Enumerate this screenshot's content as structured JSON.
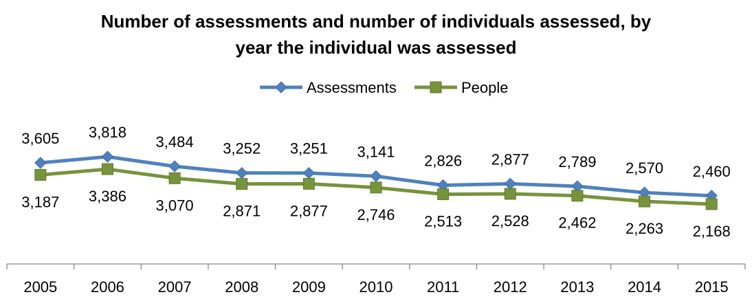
{
  "chart_data": {
    "type": "line",
    "title": [
      "Number of assessments and number of individuals assessed, by",
      "year the individual was assessed"
    ],
    "categories": [
      "2005",
      "2006",
      "2007",
      "2008",
      "2009",
      "2010",
      "2011",
      "2012",
      "2013",
      "2014",
      "2015"
    ],
    "series": [
      {
        "name": "Assessments",
        "color": "#4F81BD",
        "marker": "diamond",
        "values": [
          3605,
          3818,
          3484,
          3252,
          3251,
          3141,
          2826,
          2877,
          2789,
          2570,
          2460
        ],
        "labels": [
          "3,605",
          "3,818",
          "3,484",
          "3,252",
          "3,251",
          "3,141",
          "2,826",
          "2,877",
          "2,789",
          "2,570",
          "2,460"
        ],
        "label_position": "above"
      },
      {
        "name": "People",
        "color": "#77933C",
        "marker": "square",
        "values": [
          3187,
          3386,
          3070,
          2871,
          2877,
          2746,
          2513,
          2528,
          2462,
          2263,
          2168
        ],
        "labels": [
          "3,187",
          "3,386",
          "3,070",
          "2,871",
          "2,877",
          "2,746",
          "2,513",
          "2,528",
          "2,462",
          "2,263",
          "2,168"
        ],
        "label_position": "below"
      }
    ],
    "legend_position": "top",
    "gridlines": false
  }
}
